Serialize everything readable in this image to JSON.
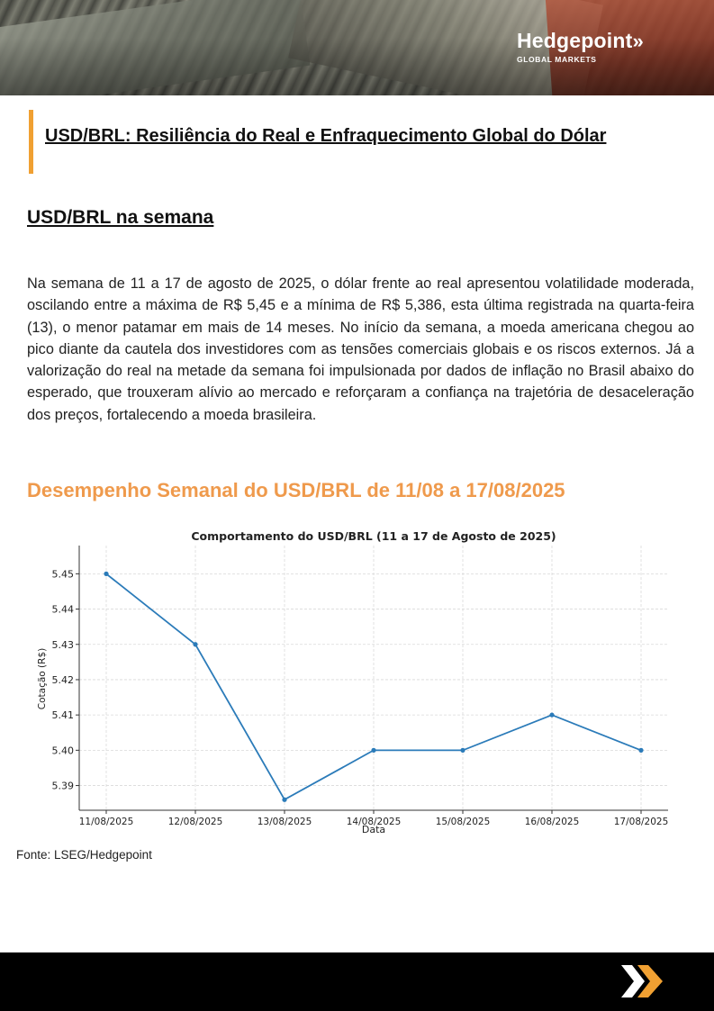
{
  "header": {
    "logo_name": "Hedgepoint",
    "logo_chevrons": "»",
    "logo_subtitle": "GLOBAL MARKETS"
  },
  "document": {
    "title": "USD/BRL: Resiliência do Real e Enfraquecimento Global do Dólar",
    "section_heading": "USD/BRL na semana",
    "paragraph": "Na semana de 11 a 17 de agosto de 2025, o dólar frente ao real apresentou volatilidade moderada, oscilando entre a máxima de R$ 5,45 e a mínima de R$ 5,386, esta última registrada na quarta-feira (13), o menor patamar em mais de 14 meses. No início da semana, a moeda americana chegou ao pico diante da cautela dos investidores com as tensões comerciais globais e os riscos externos. Já a valorização do real na metade da semana foi impulsionada por dados de inflação no Brasil abaixo do esperado, que trouxeram alívio ao mercado e reforçaram a confiança na trajetória de desaceleração dos preços, fortalecendo a moeda brasileira.",
    "chart_heading": "Desempenho Semanal do USD/BRL de 11/08 a 17/08/2025",
    "source": "Fonte: LSEG/Hedgepoint"
  },
  "colors": {
    "accent_orange": "#f0a032",
    "heading_orange": "#ef9a4c",
    "line_blue": "#2b7bb9",
    "footer_black": "#000000"
  },
  "chart_data": {
    "type": "line",
    "title": "Comportamento do USD/BRL (11 a 17 de Agosto de 2025)",
    "xlabel": "Data",
    "ylabel": "Cotação (R$)",
    "categories": [
      "11/08/2025",
      "12/08/2025",
      "13/08/2025",
      "14/08/2025",
      "15/08/2025",
      "16/08/2025",
      "17/08/2025"
    ],
    "values": [
      5.45,
      5.43,
      5.386,
      5.4,
      5.4,
      5.41,
      5.4
    ],
    "yticks": [
      5.39,
      5.4,
      5.41,
      5.42,
      5.43,
      5.44,
      5.45
    ],
    "ylim": [
      5.383,
      5.458
    ],
    "grid": true,
    "legend": "none",
    "marker": "circle"
  }
}
